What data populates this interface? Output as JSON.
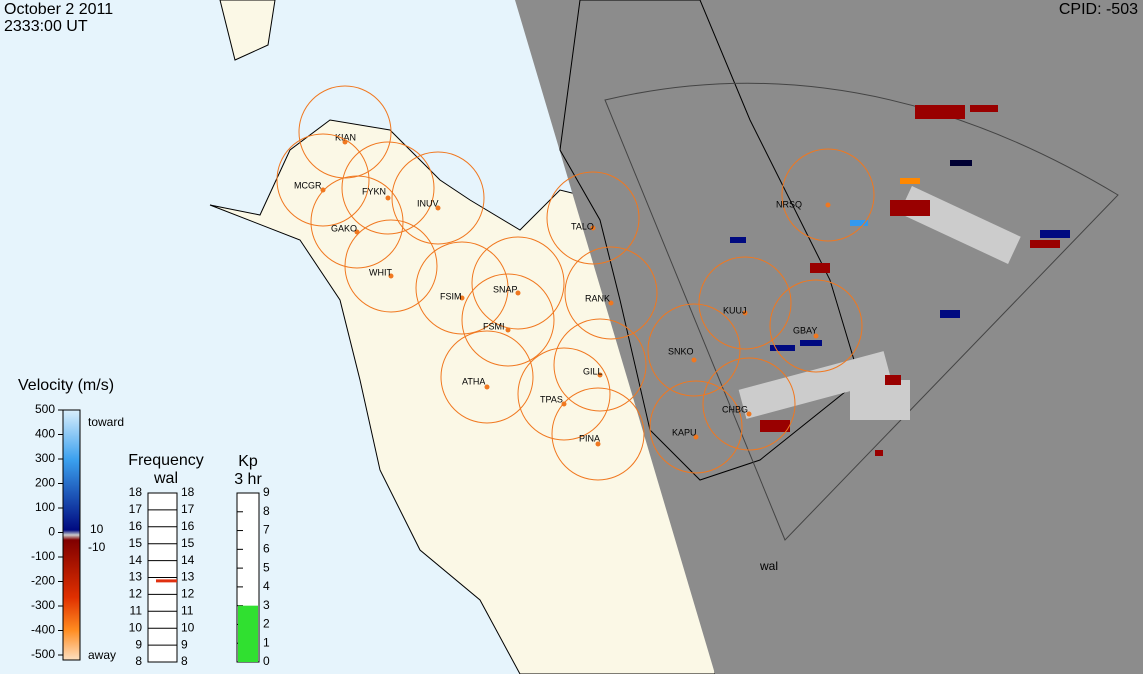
{
  "header": {
    "date": "October 2 2011",
    "time": "2333:00 UT",
    "cpid": "CPID: -503"
  },
  "stations": [
    "KIAN",
    "MCGR",
    "FYKN",
    "INUV",
    "GAKO",
    "WHIT",
    "FSIM",
    "SNAP",
    "FSMI",
    "TALO",
    "RANK",
    "NRSQ",
    "KUUJ",
    "GBAY",
    "SNKO",
    "GILL",
    "ATHA",
    "TPAS",
    "PINA",
    "KAPU",
    "CHBG"
  ],
  "radar_label": "wal",
  "velocity_scale": {
    "title": "Velocity (m/s)",
    "ticks": [
      500,
      400,
      300,
      200,
      100,
      0,
      -100,
      -200,
      -300,
      -400,
      -500
    ],
    "toward": "toward",
    "away": "away",
    "upper": 10,
    "lower": -10
  },
  "frequency_scale": {
    "title": "Frequency",
    "subtitle": "wal",
    "ticks": [
      8,
      9,
      10,
      11,
      12,
      13,
      14,
      15,
      16,
      17,
      18
    ],
    "value": 12.8
  },
  "kp_scale": {
    "title": "Kp",
    "subtitle": "3 hr",
    "ticks": [
      0,
      1,
      2,
      3,
      4,
      5,
      6,
      7,
      8,
      9
    ],
    "value": 3
  }
}
